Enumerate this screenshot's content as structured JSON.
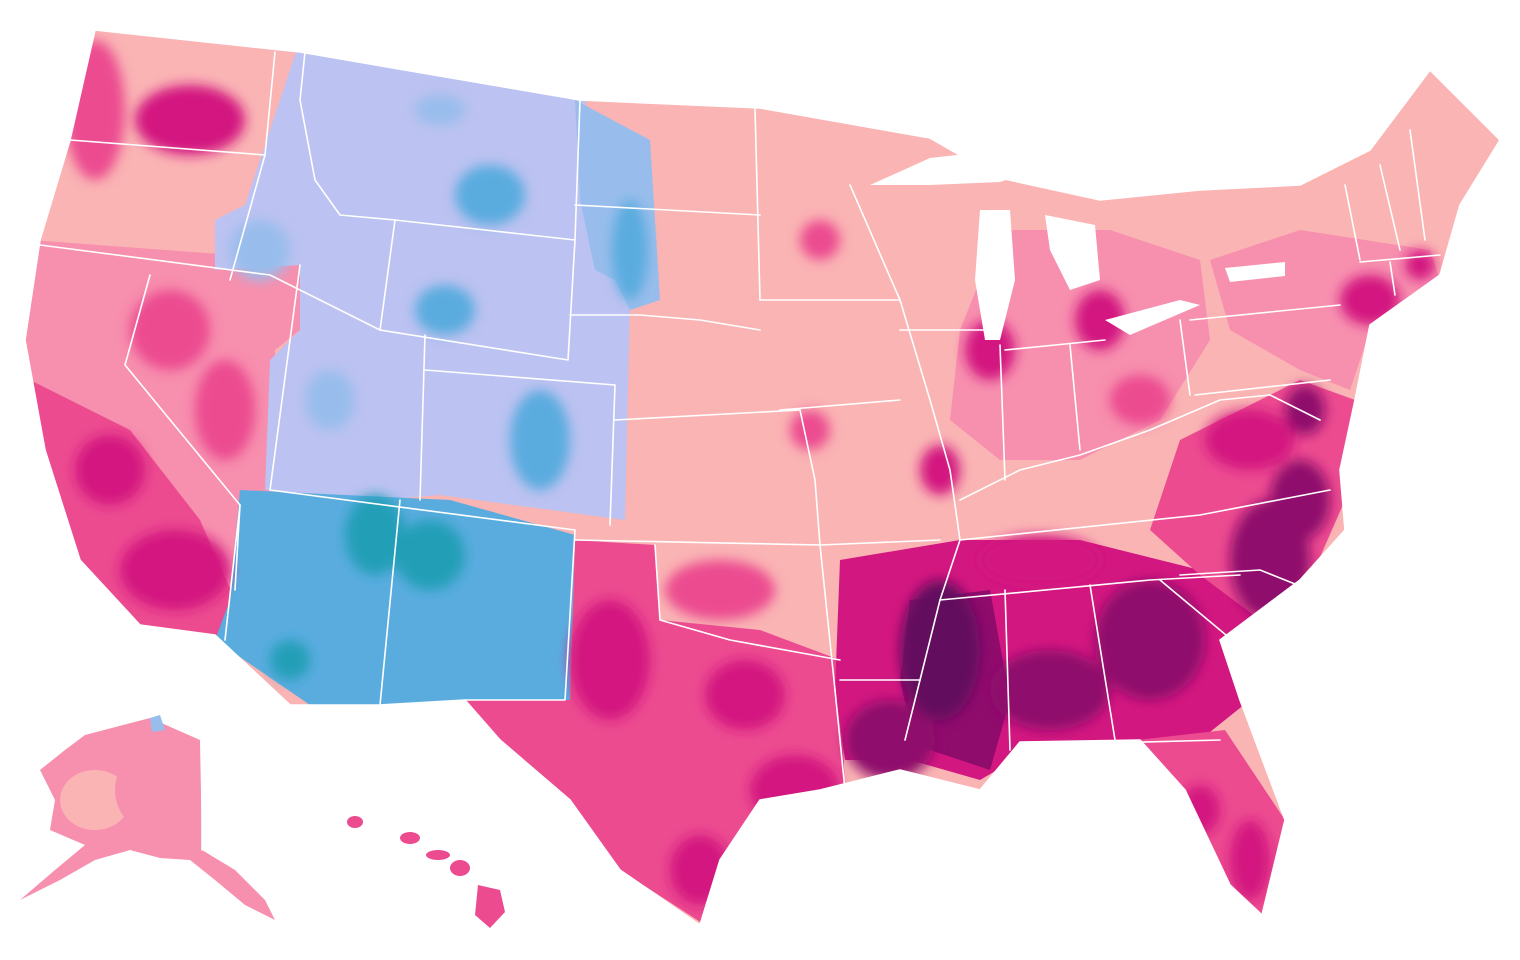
{
  "map": {
    "type": "choropleth",
    "title": "",
    "palette": {
      "blue_light": "#bcc2f1",
      "blue_mid": "#98bdec",
      "blue_strong": "#5aacdf",
      "teal": "#229fb7",
      "pink_pale": "#fab4b4",
      "pink_light": "#f78fae",
      "pink_mid": "#ec4b90",
      "magenta": "#d31780",
      "purple_dark": "#8f0b6c",
      "purple_deepest": "#640a5e",
      "border": "#ffffff",
      "background": "#ffffff"
    },
    "legend": []
  }
}
